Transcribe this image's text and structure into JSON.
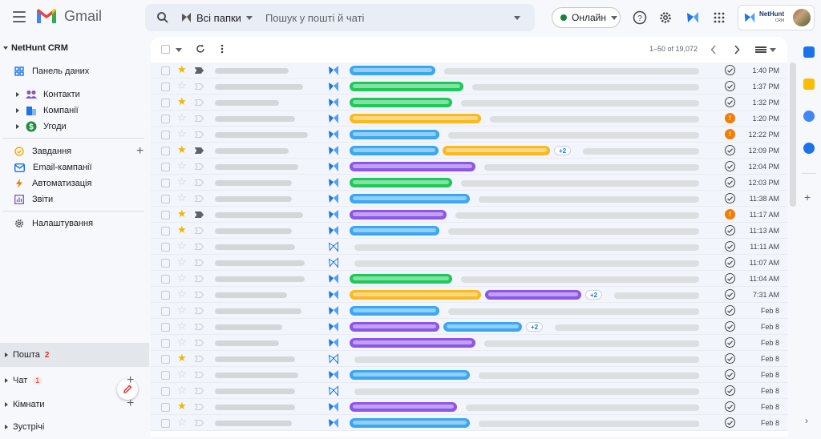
{
  "app": {
    "title": "Gmail"
  },
  "search": {
    "folder": "Всі папки",
    "placeholder": "Пошук у пошті й чаті"
  },
  "status": {
    "label": "Онлайн",
    "color": "#188038"
  },
  "account": {
    "brand": "NetHunt",
    "brand_sub": "CRM"
  },
  "sidebar": {
    "header": "NetHunt CRM",
    "dashboard": "Панель даних",
    "folders": [
      {
        "label": "Контакти",
        "icon": "contacts-icon",
        "color": "#7e57c2"
      },
      {
        "label": "Компанії",
        "icon": "company-icon",
        "color": "#1a73e8"
      },
      {
        "label": "Угоди",
        "icon": "deals-icon",
        "color": "#1e8e3e"
      }
    ],
    "tools": [
      {
        "label": "Завдання",
        "icon": "tasks-icon"
      },
      {
        "label": "Email-кампанії",
        "icon": "email-campaign-icon"
      },
      {
        "label": "Автоматизація",
        "icon": "automation-icon"
      },
      {
        "label": "Звіти",
        "icon": "reports-icon"
      }
    ],
    "settings": "Налаштування",
    "mail": {
      "label": "Пошта",
      "count": "2"
    },
    "chat": {
      "label": "Чат",
      "count": "1"
    },
    "rooms": {
      "label": "Кімнати"
    },
    "meet": {
      "label": "Зустрічі"
    }
  },
  "pager": {
    "range": "1–50 of 19,072"
  },
  "colors": {
    "blue": "#3aa7f0",
    "green": "#1ec85a",
    "yellow": "#f9b91f",
    "purple": "#8e56e6",
    "orange": "#f57c00"
  },
  "emails": [
    {
      "star": true,
      "imp": true,
      "nh": "solid",
      "tags": [
        [
          "blue",
          107
        ]
      ],
      "plus": "",
      "status": "ok",
      "time": "1:40 PM",
      "sender": 92
    },
    {
      "star": false,
      "imp": false,
      "nh": "solid",
      "tags": [
        [
          "green",
          142
        ]
      ],
      "plus": "",
      "status": "ok",
      "time": "1:37 PM",
      "sender": 110
    },
    {
      "star": true,
      "imp": false,
      "nh": "solid",
      "tags": [
        [
          "green",
          128
        ]
      ],
      "plus": "",
      "status": "ok",
      "time": "1:32 PM",
      "sender": 80
    },
    {
      "star": false,
      "imp": false,
      "nh": "solid",
      "tags": [
        [
          "yellow",
          164
        ]
      ],
      "plus": "",
      "status": "warn",
      "time": "1:20 PM",
      "sender": 100
    },
    {
      "star": false,
      "imp": false,
      "nh": "solid",
      "tags": [
        [
          "blue",
          112
        ]
      ],
      "plus": "",
      "status": "warn",
      "time": "12:22 PM",
      "sender": 116
    },
    {
      "star": true,
      "imp": true,
      "nh": "solid",
      "tags": [
        [
          "blue",
          111
        ],
        [
          "yellow",
          134
        ]
      ],
      "plus": "+2",
      "status": "ok",
      "time": "12:09 PM",
      "sender": 92
    },
    {
      "star": false,
      "imp": false,
      "nh": "solid",
      "tags": [
        [
          "purple",
          157
        ]
      ],
      "plus": "",
      "status": "ok",
      "time": "12:04 PM",
      "sender": 104
    },
    {
      "star": false,
      "imp": false,
      "nh": "solid",
      "tags": [
        [
          "green",
          128
        ]
      ],
      "plus": "",
      "status": "ok",
      "time": "12:03 PM",
      "sender": 96
    },
    {
      "star": false,
      "imp": false,
      "nh": "solid",
      "tags": [
        [
          "blue",
          150
        ]
      ],
      "plus": "",
      "status": "ok",
      "time": "11:38 AM",
      "sender": 96
    },
    {
      "star": true,
      "imp": true,
      "nh": "solid",
      "tags": [
        [
          "purple",
          121
        ]
      ],
      "plus": "",
      "status": "warn",
      "time": "11:17 AM",
      "sender": 110
    },
    {
      "star": true,
      "imp": false,
      "nh": "solid",
      "tags": [
        [
          "blue",
          112
        ]
      ],
      "plus": "",
      "status": "ok",
      "time": "11:13 AM",
      "sender": 96
    },
    {
      "star": false,
      "imp": false,
      "nh": "outline",
      "tags": [],
      "plus": "",
      "status": "ok",
      "time": "11:11 AM",
      "sender": 100
    },
    {
      "star": false,
      "imp": false,
      "nh": "outline",
      "tags": [],
      "plus": "",
      "status": "ok",
      "time": "11:07 AM",
      "sender": 112
    },
    {
      "star": false,
      "imp": false,
      "nh": "solid",
      "tags": [
        [
          "green",
          128
        ]
      ],
      "plus": "",
      "status": "ok",
      "time": "11:04 AM",
      "sender": 112
    },
    {
      "star": false,
      "imp": false,
      "nh": "solid",
      "tags": [
        [
          "yellow",
          164
        ],
        [
          "purple",
          120
        ]
      ],
      "plus": "+2",
      "status": "ok",
      "time": "7:31 AM",
      "sender": 90
    },
    {
      "star": false,
      "imp": false,
      "nh": "solid",
      "tags": [
        [
          "blue",
          112
        ]
      ],
      "plus": "",
      "status": "ok",
      "time": "Feb 8",
      "sender": 108
    },
    {
      "star": false,
      "imp": false,
      "nh": "solid",
      "tags": [
        [
          "purple",
          112
        ],
        [
          "blue",
          98
        ]
      ],
      "plus": "+2",
      "status": "ok",
      "time": "Feb 8",
      "sender": 84
    },
    {
      "star": false,
      "imp": false,
      "nh": "solid",
      "tags": [
        [
          "purple",
          157
        ]
      ],
      "plus": "",
      "status": "ok",
      "time": "Feb 8",
      "sender": 80
    },
    {
      "star": true,
      "imp": false,
      "nh": "outline",
      "tags": [],
      "plus": "",
      "status": "ok",
      "time": "Feb 8",
      "sender": 100
    },
    {
      "star": false,
      "imp": false,
      "nh": "solid",
      "tags": [
        [
          "blue",
          150
        ]
      ],
      "plus": "",
      "status": "ok",
      "time": "Feb 8",
      "sender": 104
    },
    {
      "star": false,
      "imp": false,
      "nh": "outline",
      "tags": [],
      "plus": "",
      "status": "ok",
      "time": "Feb 8",
      "sender": 100
    },
    {
      "star": true,
      "imp": false,
      "nh": "solid",
      "tags": [
        [
          "purple",
          134
        ]
      ],
      "plus": "",
      "status": "ok",
      "time": "Feb 8",
      "sender": 100
    },
    {
      "star": false,
      "imp": false,
      "nh": "solid",
      "tags": [
        [
          "blue",
          150
        ]
      ],
      "plus": "",
      "status": "ok",
      "time": "Feb 8",
      "sender": 96
    }
  ]
}
